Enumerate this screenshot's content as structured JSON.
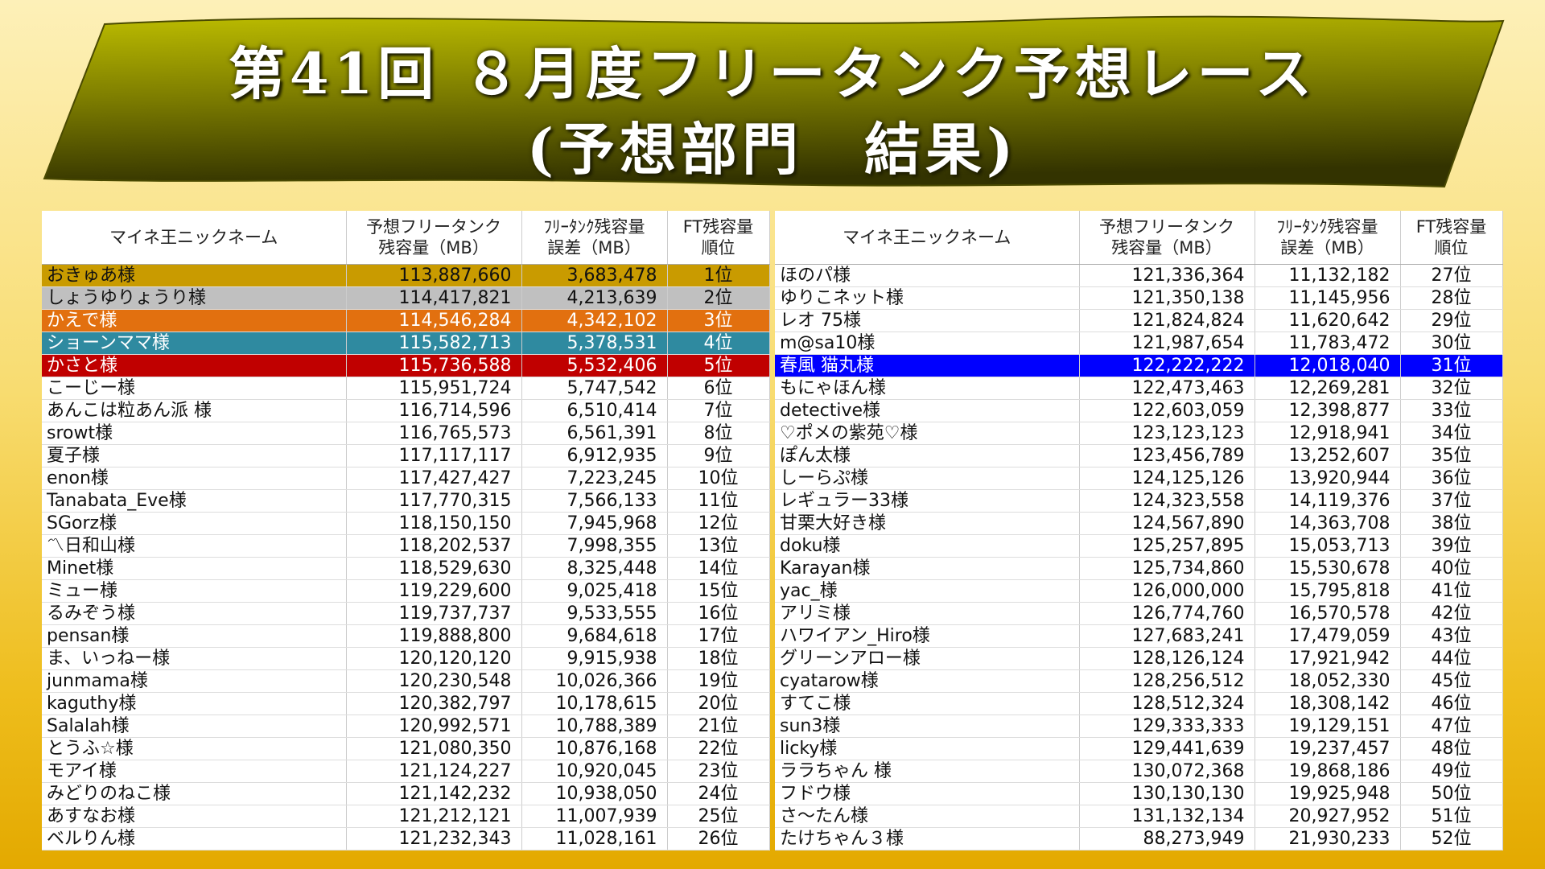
{
  "header": {
    "title": [
      "第41回 ８月度フリータンク予想レース",
      "(予想部門　結果)"
    ]
  },
  "tables": [
    {
      "header": [
        [
          "マイネ王ニックネーム"
        ],
        [
          "予想フリータンク",
          "残容量（MB）"
        ],
        [
          "ﾌﾘｰﾀﾝｸ残容量",
          "誤差（MB）"
        ],
        [
          "FT残容量",
          "順位"
        ]
      ],
      "rows": [
        [
          "おきゅあ様",
          "113,887,660",
          "3,683,478",
          "1位"
        ],
        [
          "しょうゆりょうり様",
          "114,417,821",
          "4,213,639",
          "2位"
        ],
        [
          "かえで様",
          "114,546,284",
          "4,342,102",
          "3位"
        ],
        [
          "ショーンママ様",
          "115,582,713",
          "5,378,531",
          "4位"
        ],
        [
          "かさと様",
          "115,736,588",
          "5,532,406",
          "5位"
        ],
        [
          "こーじー様",
          "115,951,724",
          "5,747,542",
          "6位"
        ],
        [
          "あんこは粒あん派 様",
          "116,714,596",
          "6,510,414",
          "7位"
        ],
        [
          "srowt様",
          "116,765,573",
          "6,561,391",
          "8位"
        ],
        [
          "夏子様",
          "117,117,117",
          "6,912,935",
          "9位"
        ],
        [
          "enon様",
          "117,427,427",
          "7,223,245",
          "10位"
        ],
        [
          "Tanabata_Eve様",
          "117,770,315",
          "7,566,133",
          "11位"
        ],
        [
          "SGorz様",
          "118,150,150",
          "7,945,968",
          "12位"
        ],
        [
          "〽日和山様",
          "118,202,537",
          "7,998,355",
          "13位"
        ],
        [
          "Minet様",
          "118,529,630",
          "8,325,448",
          "14位"
        ],
        [
          "ミュー様",
          "119,229,600",
          "9,025,418",
          "15位"
        ],
        [
          "るみぞう様",
          "119,737,737",
          "9,533,555",
          "16位"
        ],
        [
          "pensan様",
          "119,888,800",
          "9,684,618",
          "17位"
        ],
        [
          "ま、いっねー様",
          "120,120,120",
          "9,915,938",
          "18位"
        ],
        [
          "junmama様",
          "120,230,548",
          "10,026,366",
          "19位"
        ],
        [
          "kaguthy様",
          "120,382,797",
          "10,178,615",
          "20位"
        ],
        [
          "Salalah様",
          "120,992,571",
          "10,788,389",
          "21位"
        ],
        [
          "とうふ☆様",
          "121,080,350",
          "10,876,168",
          "22位"
        ],
        [
          "モアイ様",
          "121,124,227",
          "10,920,045",
          "23位"
        ],
        [
          "みどりのねこ様",
          "121,142,232",
          "10,938,050",
          "24位"
        ],
        [
          "あすなお様",
          "121,212,121",
          "11,007,939",
          "25位"
        ],
        [
          "ベルりん様",
          "121,232,343",
          "11,028,161",
          "26位"
        ]
      ]
    },
    {
      "header": [
        [
          "マイネ王ニックネーム"
        ],
        [
          "予想フリータンク",
          "残容量（MB）"
        ],
        [
          "ﾌﾘｰﾀﾝｸ残容量",
          "誤差（MB）"
        ],
        [
          "FT残容量",
          "順位"
        ]
      ],
      "rows": [
        [
          "ほのパ様",
          "121,336,364",
          "11,132,182",
          "27位"
        ],
        [
          "ゆりこネット様",
          "121,350,138",
          "11,145,956",
          "28位"
        ],
        [
          "レオ 75様",
          "121,824,824",
          "11,620,642",
          "29位"
        ],
        [
          "m@sa10様",
          "121,987,654",
          "11,783,472",
          "30位"
        ],
        [
          "春風 猫丸様",
          "122,222,222",
          "12,018,040",
          "31位"
        ],
        [
          "もにゃほん様",
          "122,473,463",
          "12,269,281",
          "32位"
        ],
        [
          "detective様",
          "122,603,059",
          "12,398,877",
          "33位"
        ],
        [
          "♡ポメの紫苑♡様",
          "123,123,123",
          "12,918,941",
          "34位"
        ],
        [
          "ぽん太様",
          "123,456,789",
          "13,252,607",
          "35位"
        ],
        [
          "しーらぷ様",
          "124,125,126",
          "13,920,944",
          "36位"
        ],
        [
          "レギュラー33様",
          "124,323,558",
          "14,119,376",
          "37位"
        ],
        [
          "甘栗大好き様",
          "124,567,890",
          "14,363,708",
          "38位"
        ],
        [
          "doku様",
          "125,257,895",
          "15,053,713",
          "39位"
        ],
        [
          "Karayan様",
          "125,734,860",
          "15,530,678",
          "40位"
        ],
        [
          "yac_様",
          "126,000,000",
          "15,795,818",
          "41位"
        ],
        [
          "アリミ様",
          "126,774,760",
          "16,570,578",
          "42位"
        ],
        [
          "ハワイアン_Hiro様",
          "127,683,241",
          "17,479,059",
          "43位"
        ],
        [
          "グリーンアロー様",
          "128,126,124",
          "17,921,942",
          "44位"
        ],
        [
          "cyatarow様",
          "128,256,512",
          "18,052,330",
          "45位"
        ],
        [
          "すてこ様",
          "128,512,324",
          "18,308,142",
          "46位"
        ],
        [
          "sun3様",
          "129,333,333",
          "19,129,151",
          "47位"
        ],
        [
          "licky様",
          "129,441,639",
          "19,237,457",
          "48位"
        ],
        [
          "ララちゃん 様",
          "130,072,368",
          "19,868,186",
          "49位"
        ],
        [
          "フドウ様",
          "130,130,130",
          "19,925,948",
          "50位"
        ],
        [
          "さ～たん様",
          "131,132,134",
          "20,927,952",
          "51位"
        ],
        [
          "たけちゃん３様",
          "88,273,949",
          "21,930,233",
          "52位"
        ]
      ]
    }
  ]
}
